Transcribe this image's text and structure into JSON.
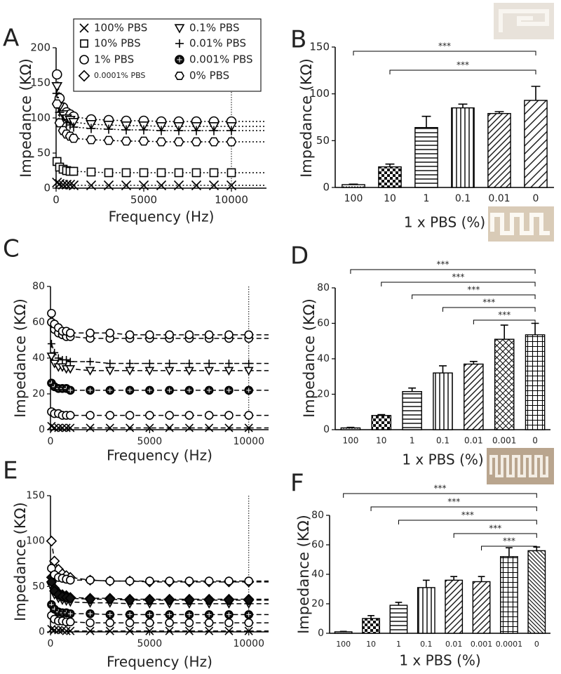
{
  "legend": [
    {
      "name": "100% PBS",
      "marker": "x"
    },
    {
      "name": "0.1% PBS",
      "marker": "triangle"
    },
    {
      "name": "10% PBS",
      "marker": "square"
    },
    {
      "name": "0.01% PBS",
      "marker": "plus"
    },
    {
      "name": "1% PBS",
      "marker": "circle"
    },
    {
      "name": "0.001% PBS",
      "marker": "star"
    },
    {
      "name": "0.0001% PBS",
      "marker": "diamond"
    },
    {
      "name": "0% PBS",
      "marker": "hexagon"
    }
  ],
  "chart_data": [
    {
      "type": "line",
      "panel": "A",
      "xlabel": "Frequency (Hz)",
      "ylabel": "Impedance (KΩ)",
      "xlim": [
        0,
        12000
      ],
      "xticks": [
        0,
        5000,
        10000
      ],
      "ylim": [
        0,
        200
      ],
      "yticks": [
        0,
        50,
        100,
        150,
        200
      ],
      "line_style": "dotted",
      "vline": 10000,
      "x": [
        50,
        200,
        400,
        600,
        800,
        1000,
        2000,
        3000,
        4000,
        5000,
        6000,
        7000,
        8000,
        9000,
        10000
      ],
      "series": [
        {
          "marker": "x",
          "values": [
            8,
            6,
            5,
            5,
            5,
            4,
            4,
            4,
            4,
            4,
            4,
            4,
            4,
            4,
            4
          ]
        },
        {
          "marker": "square",
          "values": [
            38,
            30,
            27,
            25,
            24,
            24,
            23,
            22,
            22,
            22,
            22,
            22,
            22,
            22,
            22
          ]
        },
        {
          "marker": "circle",
          "values": [
            162,
            128,
            115,
            108,
            105,
            102,
            98,
            97,
            96,
            96,
            95,
            95,
            95,
            95,
            95
          ]
        },
        {
          "marker": "triangle",
          "values": [
            145,
            116,
            105,
            99,
            97,
            94,
            91,
            90,
            89,
            89,
            88,
            88,
            88,
            88,
            88
          ]
        },
        {
          "marker": "plus",
          "values": [
            135,
            108,
            98,
            93,
            90,
            87,
            85,
            84,
            83,
            83,
            82,
            82,
            82,
            82,
            82
          ]
        },
        {
          "marker": "hexagon",
          "values": [
            120,
            93,
            82,
            77,
            74,
            71,
            69,
            68,
            67,
            67,
            66,
            66,
            66,
            66,
            66
          ]
        }
      ]
    },
    {
      "type": "bar",
      "panel": "B",
      "xlabel": "1 x PBS (%)",
      "ylabel": "Impedance (KΩ)",
      "ylim": [
        0,
        150
      ],
      "yticks": [
        0,
        50,
        100,
        150
      ],
      "categories": [
        "100",
        "10",
        "1",
        "0.1",
        "0.01",
        "0"
      ],
      "values": [
        3,
        22,
        64,
        85,
        79,
        93
      ],
      "errors": [
        0.5,
        3,
        12,
        4,
        2,
        15
      ],
      "patterns": [
        "dots",
        "checker",
        "horizontal",
        "vertical",
        "diagonal",
        "diagonal-wide"
      ],
      "significance": [
        {
          "from": 0,
          "to": 5,
          "label": "***"
        },
        {
          "from": 1,
          "to": 5,
          "label": "***"
        }
      ]
    },
    {
      "type": "line",
      "panel": "C",
      "xlabel": "Frequency (Hz)",
      "ylabel": "Impedance (KΩ)",
      "xlim": [
        0,
        11000
      ],
      "xticks": [
        0,
        5000,
        10000
      ],
      "ylim": [
        0,
        80
      ],
      "yticks": [
        0,
        20,
        40,
        60,
        80
      ],
      "line_style": "dashed",
      "vline": 10000,
      "x": [
        50,
        200,
        400,
        600,
        800,
        1000,
        2000,
        3000,
        4000,
        5000,
        6000,
        7000,
        8000,
        9000,
        10000
      ],
      "series": [
        {
          "marker": "x",
          "values": [
            2,
            1,
            1,
            1,
            1,
            1,
            1,
            1,
            1,
            1,
            1,
            1,
            1,
            1,
            1
          ]
        },
        {
          "marker": "circle",
          "values": [
            10,
            9,
            9,
            8,
            8,
            8,
            8,
            8,
            8,
            8,
            8,
            8,
            8,
            8,
            8
          ]
        },
        {
          "marker": "star",
          "values": [
            26,
            24,
            23,
            23,
            23,
            22,
            22,
            22,
            22,
            22,
            22,
            22,
            22,
            22,
            22
          ]
        },
        {
          "marker": "triangle",
          "values": [
            41,
            37,
            35,
            35,
            34,
            34,
            33,
            33,
            33,
            33,
            33,
            33,
            33,
            33,
            33
          ]
        },
        {
          "marker": "plus",
          "values": [
            48,
            43,
            40,
            39,
            39,
            38,
            38,
            37,
            37,
            37,
            37,
            37,
            37,
            37,
            37
          ]
        },
        {
          "marker": "circle",
          "values": [
            60,
            56,
            54,
            53,
            52,
            52,
            51,
            51,
            51,
            51,
            51,
            51,
            51,
            51,
            51
          ]
        },
        {
          "marker": "circle",
          "values": [
            65,
            59,
            57,
            55,
            55,
            54,
            54,
            54,
            53,
            53,
            53,
            53,
            53,
            53,
            53
          ]
        }
      ]
    },
    {
      "type": "bar",
      "panel": "D",
      "xlabel": "1 x PBS (%)",
      "ylabel": "Impedance (KΩ)",
      "ylim": [
        0,
        80
      ],
      "yticks": [
        0,
        20,
        40,
        60,
        80
      ],
      "categories": [
        "100",
        "10",
        "1",
        "0.1",
        "0.01",
        "0.001",
        "0"
      ],
      "values": [
        1,
        8,
        21.5,
        32,
        37,
        51,
        53.5
      ],
      "errors": [
        0.3,
        0.5,
        2,
        4,
        1.5,
        8,
        6.5
      ],
      "patterns": [
        "dots",
        "checker",
        "horizontal",
        "vertical",
        "diagonal",
        "crosshatch",
        "grid"
      ],
      "significance": [
        {
          "from": 0,
          "to": 6,
          "label": "***"
        },
        {
          "from": 1,
          "to": 6,
          "label": "***"
        },
        {
          "from": 2,
          "to": 6,
          "label": "***"
        },
        {
          "from": 3,
          "to": 6,
          "label": "***"
        },
        {
          "from": 4,
          "to": 6,
          "label": "***"
        }
      ]
    },
    {
      "type": "line",
      "panel": "E",
      "xlabel": "Frequency (Hz)",
      "ylabel": "Impedance (KΩ)",
      "xlim": [
        0,
        11000
      ],
      "xticks": [
        0,
        5000,
        10000
      ],
      "ylim": [
        0,
        150
      ],
      "yticks": [
        0,
        50,
        100,
        150
      ],
      "line_style": "dashed",
      "vline": 10000,
      "x": [
        50,
        200,
        400,
        600,
        800,
        1000,
        2000,
        3000,
        4000,
        5000,
        6000,
        7000,
        8000,
        9000,
        10000
      ],
      "series": [
        {
          "marker": "x",
          "values": [
            3,
            2,
            2,
            2,
            1,
            1,
            1,
            1,
            1,
            1,
            1,
            1,
            1,
            1,
            1
          ]
        },
        {
          "marker": "circle",
          "values": [
            18,
            14,
            12,
            12,
            11,
            11,
            10,
            10,
            10,
            10,
            10,
            10,
            10,
            10,
            10
          ]
        },
        {
          "marker": "star",
          "values": [
            30,
            25,
            22,
            21,
            21,
            20,
            20,
            19,
            19,
            19,
            19,
            19,
            19,
            19,
            19
          ]
        },
        {
          "marker": "triangle",
          "values": [
            50,
            41,
            37,
            35,
            34,
            33,
            32,
            32,
            31,
            31,
            31,
            31,
            31,
            31,
            31
          ]
        },
        {
          "marker": "diamond-filled",
          "values": [
            60,
            48,
            43,
            41,
            40,
            38,
            37,
            37,
            36,
            36,
            36,
            36,
            36,
            36,
            36
          ]
        },
        {
          "marker": "diamond-filled",
          "values": [
            55,
            45,
            41,
            39,
            38,
            37,
            36,
            36,
            35,
            35,
            35,
            35,
            35,
            35,
            35
          ]
        },
        {
          "marker": "diamond",
          "values": [
            100,
            78,
            69,
            64,
            62,
            60,
            57,
            56,
            56,
            55,
            55,
            55,
            55,
            55,
            55
          ]
        },
        {
          "marker": "circle",
          "values": [
            70,
            63,
            60,
            59,
            58,
            57,
            57,
            56,
            56,
            56,
            56,
            56,
            56,
            56,
            56
          ]
        }
      ]
    },
    {
      "type": "bar",
      "panel": "F",
      "xlabel": "1 x PBS (%)",
      "ylabel": "Impedance (KΩ)",
      "ylim": [
        0,
        80
      ],
      "yticks": [
        0,
        20,
        40,
        60,
        80
      ],
      "categories": [
        "100",
        "10",
        "1",
        "0.1",
        "0.01",
        "0.001",
        "0.0001",
        "0"
      ],
      "values": [
        1,
        10,
        19,
        31,
        36,
        35,
        52,
        56
      ],
      "errors": [
        0.3,
        2,
        2,
        5,
        2.5,
        3.5,
        6,
        2.5
      ],
      "patterns": [
        "dots",
        "checker",
        "horizontal",
        "vertical",
        "diagonal",
        "diagonal",
        "grid",
        "diagonal-dense"
      ],
      "significance": [
        {
          "from": 0,
          "to": 7,
          "label": "***"
        },
        {
          "from": 1,
          "to": 7,
          "label": "***"
        },
        {
          "from": 2,
          "to": 7,
          "label": "***"
        },
        {
          "from": 4,
          "to": 7,
          "label": "***"
        },
        {
          "from": 5,
          "to": 7,
          "label": "***"
        }
      ]
    }
  ]
}
